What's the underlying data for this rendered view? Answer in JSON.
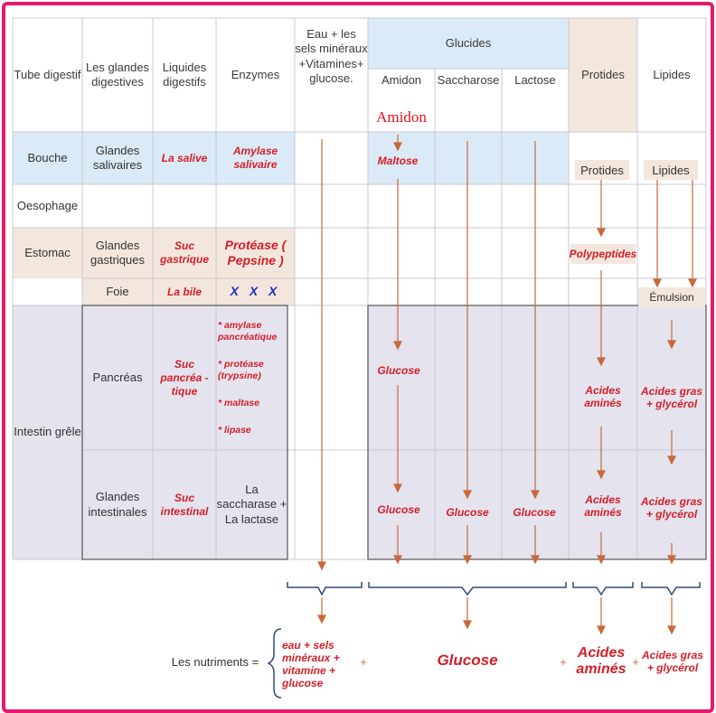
{
  "colors": {
    "frame": "#e5196e",
    "blue_band": "#dbeaf7",
    "peach_band": "#f3e6dc",
    "lavender": "#e4e3ee",
    "arrow": "#c8693a",
    "red_text": "#d3202a",
    "blue_text": "#1c31c8"
  },
  "header": {
    "tube": "Tube digestif",
    "glandes": "Les glandes digestives",
    "liquides": "Liquides digestifs",
    "enzymes": "Enzymes",
    "eau": "Eau + les sels minéraux +Vitamines+ glucose.",
    "glucides": "Glucides",
    "amidon": "Amidon",
    "saccharose": "Saccharose",
    "lactose": "Lactose",
    "protides": "Protides",
    "lipides": "Lipides",
    "amidon_stamp": "Amidon"
  },
  "rows": {
    "bouche": {
      "organ": "Bouche",
      "gland": "Glandes salivaires",
      "liquid": "La salive",
      "enzyme": "Amylase salivaire",
      "amidon": "Maltose",
      "protides": "Protides",
      "lipides": "Lipides"
    },
    "oesophage": {
      "organ": "Oesophage"
    },
    "estomac": {
      "organ": "Estomac",
      "gland": "Glandes gastriques",
      "liquid": "Suc gastrique",
      "enzyme": "Protéase ( Pepsine )",
      "protides": "Polypeptides"
    },
    "foie": {
      "gland": "Foie",
      "liquid": "La bile",
      "enzyme": "X X X",
      "lipides": "Émulsion"
    },
    "intestin": {
      "organ": "Intestin grêle",
      "pancreas": {
        "gland": "Pancréas",
        "liquid": "Suc pancréa - tique",
        "enzymes": [
          "* amylase pancréatique",
          "* protéase (trypsine)",
          "* maltase",
          "* lipase"
        ],
        "amidon": "Glucose",
        "protides": "Acides aminés",
        "lipides": "Acides gras + glycérol"
      },
      "intestinales": {
        "gland": "Glandes intestinales",
        "liquid": "Suc intestinal",
        "enzyme": "La saccharase + La lactase",
        "amidon": "Glucose",
        "saccharose": "Glucose",
        "lactose": "Glucose",
        "protides": "Acides aminés",
        "lipides": "Acides gras + glycérol"
      }
    }
  },
  "nutrients": {
    "label": "Les nutriments =",
    "eau": "eau + sels minéraux + vitamine + glucose",
    "plus": "+",
    "glucose": "Glucose",
    "acides_amines": "Acides aminés",
    "acides_gras": "Acides gras + glycérol"
  }
}
